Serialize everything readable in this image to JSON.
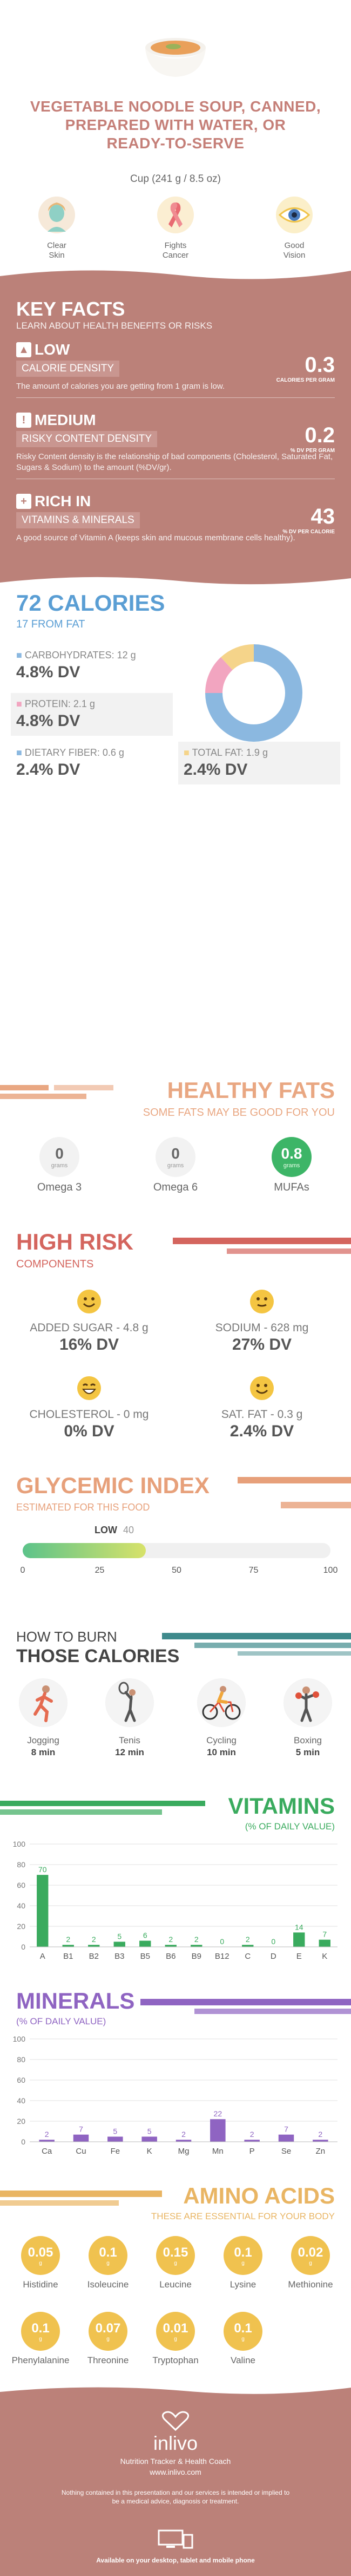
{
  "header": {
    "title_lines": [
      "VEGETABLE NOODLE SOUP, CANNED,",
      "PREPARED WITH WATER, OR",
      "READY-TO-SERVE"
    ],
    "serving": "Cup (241 g / 8.5 oz)",
    "benefits": [
      {
        "icon": "face-icon",
        "label": "Clear Skin"
      },
      {
        "icon": "ribbon-icon",
        "label": "Fights Cancer"
      },
      {
        "icon": "eye-icon",
        "label": "Good Vision"
      }
    ]
  },
  "key_facts": {
    "title": "KEY FACTS",
    "subtitle": "LEARN ABOUT HEALTH BENEFITS OR RISKS",
    "facts": [
      {
        "level": "LOW",
        "icon": "flame-icon",
        "name": "CALORIE DENSITY",
        "value": "0.3",
        "unit": "CALORIES PER GRAM",
        "desc": "The amount of calories you are getting from 1 gram is low."
      },
      {
        "level": "MEDIUM",
        "icon": "warning-icon",
        "name": "RISKY CONTENT DENSITY",
        "value": "0.2",
        "unit": "% DV PER GRAM",
        "desc": "Risky Content density is the relationship of bad components (Cholesterol, Saturated Fat, Sugars & Sodium) to the amount (%DV/gr)."
      },
      {
        "level": "RICH  IN",
        "icon": "plus-icon",
        "name": "VITAMINS & MINERALS",
        "value": "43",
        "unit": "% DV PER CALORIE",
        "desc": "A good source of Vitamin A (keeps skin and mucous membrane cells healthy)."
      }
    ]
  },
  "calories": {
    "title": "72 CALORIES",
    "subtitle": "17 FROM FAT",
    "nutrients": [
      {
        "label": "CARBOHYDRATES: 12 g",
        "dv": "4.8% DV",
        "color": "#8bb8e0"
      },
      {
        "label": "PROTEIN: 2.1 g",
        "dv": "4.8% DV",
        "color": "#f2a5c0"
      },
      {
        "label": "DIETARY FIBER: 0.6 g",
        "dv": "2.4% DV",
        "color": "#8bb8e0"
      },
      {
        "label": "TOTAL FAT: 1.9 g",
        "dv": "2.4% DV",
        "color": "#f5d48a"
      }
    ],
    "donut": [
      {
        "name": "carbohydrates",
        "value": 12,
        "color": "#8bb8e0"
      },
      {
        "name": "protein",
        "value": 2.1,
        "color": "#f2a5c0"
      },
      {
        "name": "fat",
        "value": 1.9,
        "color": "#f5d48a"
      }
    ]
  },
  "healthy_fats": {
    "title": "HEALTHY FATS",
    "subtitle": "SOME FATS MAY BE GOOD FOR YOU",
    "items": [
      {
        "value": "0",
        "unit": "grams",
        "name": "Omega 3"
      },
      {
        "value": "0",
        "unit": "grams",
        "name": "Omega 6"
      },
      {
        "value": "0.8",
        "unit": "grams",
        "name": "MUFAs"
      }
    ]
  },
  "high_risk": {
    "title": "HIGH RISK",
    "subtitle": "COMPONENTS",
    "items": [
      {
        "label": "ADDED SUGAR - 4.8 g",
        "dv": "16% DV"
      },
      {
        "label": "SODIUM - 628 mg",
        "dv": "27% DV"
      },
      {
        "label": "CHOLESTEROL - 0 mg",
        "dv": "0% DV"
      },
      {
        "label": "SAT. FAT - 0.3 g",
        "dv": "2.4% DV"
      }
    ]
  },
  "glycemic": {
    "title": "GLYCEMIC INDEX",
    "subtitle": "ESTIMATED FOR THIS FOOD",
    "level_label": "LOW",
    "value": 40,
    "ticks": [
      "0",
      "25",
      "50",
      "75",
      "100"
    ]
  },
  "burn": {
    "title_1": "HOW TO BURN",
    "title_2": "THOSE CALORIES",
    "activities": [
      {
        "name": "Jogging",
        "minutes": "8 min",
        "icon": "jogging-icon"
      },
      {
        "name": "Tenis",
        "minutes": "12 min",
        "icon": "tennis-icon"
      },
      {
        "name": "Cycling",
        "minutes": "10 min",
        "icon": "cycling-icon"
      },
      {
        "name": "Boxing",
        "minutes": "5 min",
        "icon": "boxing-icon"
      }
    ]
  },
  "chart_data": [
    {
      "type": "bar",
      "title": "VITAMINS",
      "subtitle": "(% OF DAILY VALUE)",
      "categories": [
        "A",
        "B1",
        "B2",
        "B3",
        "B5",
        "B6",
        "B9",
        "B12",
        "C",
        "D",
        "E",
        "K"
      ],
      "values": [
        70,
        2,
        2,
        5,
        6,
        2,
        2,
        0,
        2,
        0,
        14,
        7
      ],
      "ylim": [
        0,
        100
      ],
      "yticks": [
        "0",
        "20",
        "40",
        "60",
        "80",
        "100"
      ],
      "color": "#3aab5e"
    },
    {
      "type": "bar",
      "title": "MINERALS",
      "subtitle": "(% OF DAILY VALUE)",
      "categories": [
        "Ca",
        "Cu",
        "Fe",
        "K",
        "Mg",
        "Mn",
        "P",
        "Se",
        "Zn"
      ],
      "values": [
        2,
        7,
        5,
        5,
        2,
        22,
        2,
        7,
        2
      ],
      "ylim": [
        0,
        100
      ],
      "yticks": [
        "0",
        "20",
        "40",
        "60",
        "80",
        "100"
      ],
      "color": "#8f64c2"
    }
  ],
  "amino": {
    "title": "AMINO ACIDS",
    "subtitle": "THESE ARE ESSENTIAL FOR YOUR BODY",
    "unit": "g",
    "items": [
      {
        "value": "0.05",
        "name": "Histidine"
      },
      {
        "value": "0.1",
        "name": "Isoleucine"
      },
      {
        "value": "0.15",
        "name": "Leucine"
      },
      {
        "value": "0.1",
        "name": "Lysine"
      },
      {
        "value": "0.02",
        "name": "Methionine"
      },
      {
        "value": "0.1",
        "name": "Phenylalanine"
      },
      {
        "value": "0.07",
        "name": "Threonine"
      },
      {
        "value": "0.01",
        "name": "Tryptophan"
      },
      {
        "value": "0.1",
        "name": "Valine"
      }
    ]
  },
  "footer": {
    "brand": "inlivo",
    "tagline": "Nutrition Tracker & Health Coach",
    "url": "www.inlivo.com",
    "disclaimer": "Nothing contained in this presentation and our services is intended or implied to be a medical advice, diagnosis or treatment.",
    "available": "Available on your desktop, tablet and mobile phone"
  }
}
